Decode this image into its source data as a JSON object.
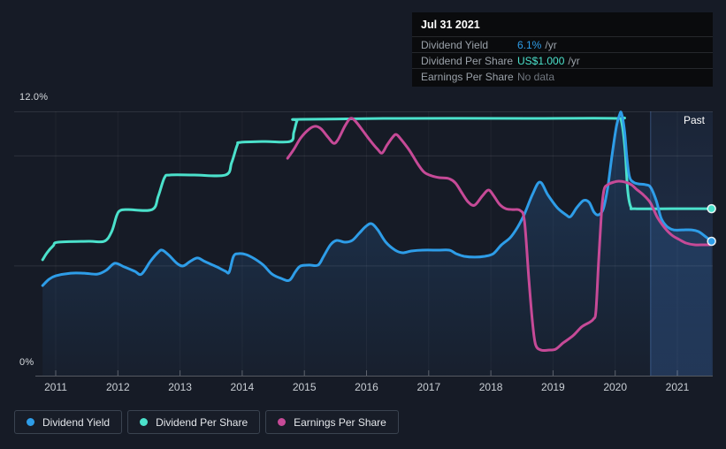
{
  "page": {
    "background": "#161b26"
  },
  "tooltip": {
    "date": "Jul 31 2021",
    "rows": [
      {
        "label": "Dividend Yield",
        "value": "6.1%",
        "suffix": "/yr",
        "value_color": "#2e9de8"
      },
      {
        "label": "Dividend Per Share",
        "value": "US$1.000",
        "suffix": "/yr",
        "value_color": "#4be1cb"
      },
      {
        "label": "Earnings Per Share",
        "value": "No data",
        "suffix": "",
        "value_color": "#70767e"
      }
    ]
  },
  "legend": {
    "items": [
      {
        "label": "Dividend Yield",
        "color": "#2e9de8"
      },
      {
        "label": "Dividend Per Share",
        "color": "#4be1cb"
      },
      {
        "label": "Earnings Per Share",
        "color": "#c64a97"
      }
    ]
  },
  "chart_data": {
    "type": "line",
    "title": "",
    "past_label": "Past",
    "past_start_year": 2020.57,
    "y_axis": {
      "unit": "%",
      "range": [
        0,
        12
      ],
      "max_label": "12.0%",
      "min_label": "0%",
      "gridline_values": [
        12,
        10,
        5,
        0
      ]
    },
    "x_axis": {
      "range": [
        2010.75,
        2021.6
      ],
      "tick_labels": [
        "2011",
        "2012",
        "2013",
        "2014",
        "2015",
        "2016",
        "2017",
        "2018",
        "2019",
        "2020",
        "2021"
      ]
    },
    "legend_position": "bottom-left",
    "grid": true,
    "series": [
      {
        "name": "Dividend Per Share",
        "color": "#4be1cb",
        "area": false,
        "end_dot": true,
        "points": [
          [
            2010.79,
            5.26
          ],
          [
            2010.86,
            5.58
          ],
          [
            2010.96,
            5.9
          ],
          [
            2011.04,
            6.06
          ],
          [
            2011.53,
            6.1
          ],
          [
            2011.78,
            6.1
          ],
          [
            2011.9,
            6.54
          ],
          [
            2011.98,
            7.26
          ],
          [
            2012.04,
            7.5
          ],
          [
            2012.17,
            7.54
          ],
          [
            2012.55,
            7.54
          ],
          [
            2012.65,
            8.15
          ],
          [
            2012.75,
            8.99
          ],
          [
            2012.84,
            9.11
          ],
          [
            2013.23,
            9.11
          ],
          [
            2013.73,
            9.11
          ],
          [
            2013.83,
            9.67
          ],
          [
            2013.92,
            10.47
          ],
          [
            2013.97,
            10.59
          ],
          [
            2014.37,
            10.63
          ],
          [
            2014.77,
            10.63
          ],
          [
            2014.83,
            11.04
          ],
          [
            2014.88,
            11.56
          ],
          [
            2014.94,
            11.64
          ],
          [
            2016.5,
            11.68
          ],
          [
            2018.64,
            11.68
          ],
          [
            2020.03,
            11.68
          ],
          [
            2020.1,
            11.56
          ],
          [
            2020.16,
            10.23
          ],
          [
            2020.2,
            8.43
          ],
          [
            2020.25,
            7.66
          ],
          [
            2020.32,
            7.58
          ],
          [
            2020.91,
            7.58
          ],
          [
            2021.55,
            7.58
          ]
        ]
      },
      {
        "name": "Dividend Yield",
        "color": "#2e9de8",
        "area": true,
        "end_dot": true,
        "points": [
          [
            2010.79,
            4.09
          ],
          [
            2010.89,
            4.37
          ],
          [
            2011.0,
            4.53
          ],
          [
            2011.24,
            4.65
          ],
          [
            2011.46,
            4.65
          ],
          [
            2011.67,
            4.61
          ],
          [
            2011.81,
            4.78
          ],
          [
            2011.95,
            5.1
          ],
          [
            2012.1,
            4.94
          ],
          [
            2012.27,
            4.74
          ],
          [
            2012.38,
            4.61
          ],
          [
            2012.52,
            5.18
          ],
          [
            2012.64,
            5.58
          ],
          [
            2012.71,
            5.7
          ],
          [
            2012.81,
            5.5
          ],
          [
            2012.95,
            5.1
          ],
          [
            2013.05,
            4.98
          ],
          [
            2013.16,
            5.18
          ],
          [
            2013.28,
            5.34
          ],
          [
            2013.4,
            5.18
          ],
          [
            2013.59,
            4.94
          ],
          [
            2013.73,
            4.74
          ],
          [
            2013.79,
            4.7
          ],
          [
            2013.86,
            5.42
          ],
          [
            2013.94,
            5.54
          ],
          [
            2014.06,
            5.5
          ],
          [
            2014.2,
            5.3
          ],
          [
            2014.34,
            5.02
          ],
          [
            2014.48,
            4.61
          ],
          [
            2014.63,
            4.41
          ],
          [
            2014.76,
            4.33
          ],
          [
            2014.86,
            4.74
          ],
          [
            2014.94,
            4.98
          ],
          [
            2015.08,
            5.02
          ],
          [
            2015.22,
            5.02
          ],
          [
            2015.31,
            5.42
          ],
          [
            2015.42,
            5.94
          ],
          [
            2015.52,
            6.14
          ],
          [
            2015.65,
            6.06
          ],
          [
            2015.77,
            6.14
          ],
          [
            2015.88,
            6.46
          ],
          [
            2015.99,
            6.78
          ],
          [
            2016.08,
            6.9
          ],
          [
            2016.18,
            6.62
          ],
          [
            2016.31,
            6.06
          ],
          [
            2016.46,
            5.7
          ],
          [
            2016.58,
            5.58
          ],
          [
            2016.72,
            5.66
          ],
          [
            2016.9,
            5.7
          ],
          [
            2017.15,
            5.7
          ],
          [
            2017.33,
            5.7
          ],
          [
            2017.44,
            5.54
          ],
          [
            2017.57,
            5.42
          ],
          [
            2017.74,
            5.38
          ],
          [
            2017.9,
            5.42
          ],
          [
            2018.04,
            5.54
          ],
          [
            2018.17,
            5.94
          ],
          [
            2018.31,
            6.26
          ],
          [
            2018.43,
            6.74
          ],
          [
            2018.54,
            7.34
          ],
          [
            2018.67,
            8.23
          ],
          [
            2018.79,
            8.79
          ],
          [
            2018.92,
            8.19
          ],
          [
            2019.07,
            7.62
          ],
          [
            2019.21,
            7.3
          ],
          [
            2019.28,
            7.22
          ],
          [
            2019.38,
            7.62
          ],
          [
            2019.49,
            7.95
          ],
          [
            2019.58,
            7.87
          ],
          [
            2019.66,
            7.42
          ],
          [
            2019.73,
            7.3
          ],
          [
            2019.81,
            7.58
          ],
          [
            2019.88,
            8.55
          ],
          [
            2019.95,
            10.03
          ],
          [
            2020.02,
            11.32
          ],
          [
            2020.07,
            11.84
          ],
          [
            2020.1,
            11.92
          ],
          [
            2020.15,
            11.12
          ],
          [
            2020.19,
            9.83
          ],
          [
            2020.23,
            9.03
          ],
          [
            2020.29,
            8.79
          ],
          [
            2020.37,
            8.71
          ],
          [
            2020.49,
            8.67
          ],
          [
            2020.57,
            8.55
          ],
          [
            2020.66,
            7.95
          ],
          [
            2020.74,
            7.14
          ],
          [
            2020.83,
            6.78
          ],
          [
            2020.94,
            6.62
          ],
          [
            2021.08,
            6.62
          ],
          [
            2021.23,
            6.62
          ],
          [
            2021.34,
            6.54
          ],
          [
            2021.44,
            6.34
          ],
          [
            2021.55,
            6.1
          ]
        ]
      },
      {
        "name": "Earnings Per Share",
        "color": "#c64a97",
        "area": false,
        "end_dot": false,
        "points": [
          [
            2014.73,
            9.87
          ],
          [
            2014.83,
            10.27
          ],
          [
            2014.94,
            10.79
          ],
          [
            2015.08,
            11.2
          ],
          [
            2015.18,
            11.32
          ],
          [
            2015.27,
            11.2
          ],
          [
            2015.38,
            10.83
          ],
          [
            2015.47,
            10.55
          ],
          [
            2015.54,
            10.71
          ],
          [
            2015.65,
            11.32
          ],
          [
            2015.74,
            11.68
          ],
          [
            2015.82,
            11.56
          ],
          [
            2015.94,
            11.12
          ],
          [
            2016.06,
            10.67
          ],
          [
            2016.18,
            10.27
          ],
          [
            2016.25,
            10.11
          ],
          [
            2016.33,
            10.47
          ],
          [
            2016.42,
            10.83
          ],
          [
            2016.48,
            10.95
          ],
          [
            2016.56,
            10.71
          ],
          [
            2016.69,
            10.23
          ],
          [
            2016.83,
            9.59
          ],
          [
            2016.93,
            9.23
          ],
          [
            2017.05,
            9.07
          ],
          [
            2017.17,
            8.99
          ],
          [
            2017.32,
            8.95
          ],
          [
            2017.43,
            8.75
          ],
          [
            2017.54,
            8.27
          ],
          [
            2017.64,
            7.87
          ],
          [
            2017.74,
            7.74
          ],
          [
            2017.86,
            8.15
          ],
          [
            2017.96,
            8.43
          ],
          [
            2018.04,
            8.19
          ],
          [
            2018.14,
            7.78
          ],
          [
            2018.24,
            7.58
          ],
          [
            2018.35,
            7.54
          ],
          [
            2018.47,
            7.5
          ],
          [
            2018.54,
            7.02
          ],
          [
            2018.61,
            4.41
          ],
          [
            2018.67,
            2.41
          ],
          [
            2018.72,
            1.4
          ],
          [
            2018.81,
            1.16
          ],
          [
            2018.92,
            1.16
          ],
          [
            2019.04,
            1.2
          ],
          [
            2019.16,
            1.48
          ],
          [
            2019.32,
            1.81
          ],
          [
            2019.46,
            2.21
          ],
          [
            2019.58,
            2.41
          ],
          [
            2019.65,
            2.57
          ],
          [
            2019.69,
            2.93
          ],
          [
            2019.73,
            5.02
          ],
          [
            2019.78,
            7.42
          ],
          [
            2019.82,
            8.43
          ],
          [
            2019.88,
            8.67
          ],
          [
            2019.98,
            8.79
          ],
          [
            2020.06,
            8.83
          ],
          [
            2020.16,
            8.79
          ],
          [
            2020.26,
            8.67
          ],
          [
            2020.34,
            8.47
          ],
          [
            2020.46,
            8.19
          ],
          [
            2020.57,
            7.83
          ],
          [
            2020.68,
            7.18
          ],
          [
            2020.8,
            6.7
          ],
          [
            2020.91,
            6.38
          ],
          [
            2021.03,
            6.18
          ],
          [
            2021.14,
            6.02
          ],
          [
            2021.28,
            5.94
          ],
          [
            2021.42,
            5.94
          ],
          [
            2021.52,
            5.94
          ]
        ]
      }
    ]
  }
}
